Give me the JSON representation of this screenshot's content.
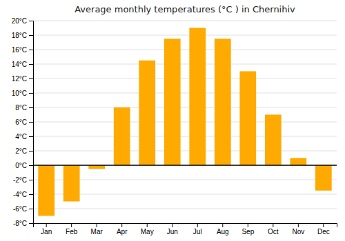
{
  "chart_data": {
    "type": "bar",
    "title": "Average monthly temperatures (°C ) in Chernihiv",
    "categories": [
      "Jan",
      "Feb",
      "Mar",
      "Apr",
      "May",
      "Jun",
      "Jul",
      "Aug",
      "Sep",
      "Oct",
      "Nov",
      "Dec"
    ],
    "values": [
      -7,
      -5,
      -0.5,
      8,
      14.5,
      17.5,
      19,
      17.5,
      13,
      7,
      1,
      -3.5
    ],
    "color": "#FFAA00",
    "ylim": [
      -8,
      20
    ],
    "yticks": [
      {
        "value": -8,
        "label": "-8°C"
      },
      {
        "value": -6,
        "label": "-6°C"
      },
      {
        "value": -4,
        "label": "-4°C"
      },
      {
        "value": -2,
        "label": "-2°C"
      },
      {
        "value": 0,
        "label": "0°C"
      },
      {
        "value": 2,
        "label": "2°C"
      },
      {
        "value": 4,
        "label": "4°C"
      },
      {
        "value": 6,
        "label": "6°C"
      },
      {
        "value": 8,
        "label": "8°C"
      },
      {
        "value": 10,
        "label": "10°C"
      },
      {
        "value": 12,
        "label": "12°C"
      },
      {
        "value": 14,
        "label": "14°C"
      },
      {
        "value": 16,
        "label": "16°C"
      },
      {
        "value": 18,
        "label": "18°C"
      },
      {
        "value": 20,
        "label": "20°C"
      }
    ],
    "grid": true
  }
}
